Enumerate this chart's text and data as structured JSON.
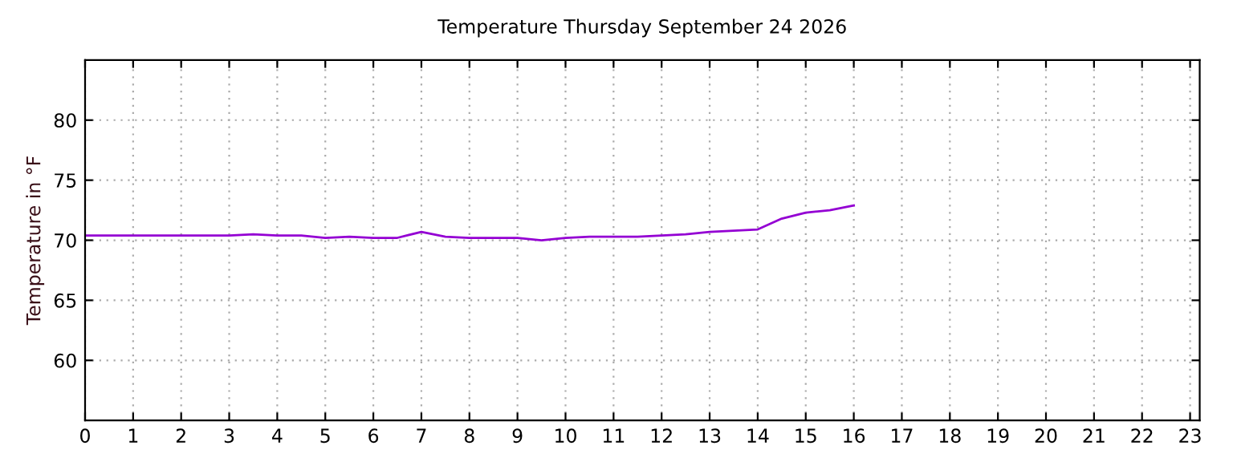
{
  "chart_data": {
    "type": "line",
    "title": "Temperature Thursday September 24 2026",
    "ylabel": "Temperature in °F",
    "x": [
      0,
      0.5,
      1,
      1.5,
      2,
      2.5,
      3,
      3.5,
      4,
      4.5,
      5,
      5.5,
      6,
      6.5,
      7,
      7.5,
      8,
      8.5,
      9,
      9.5,
      10,
      10.5,
      11,
      11.5,
      12,
      12.5,
      13,
      13.5,
      14,
      14.5,
      15,
      15.5,
      16
    ],
    "series": [
      {
        "color": "#9400d3",
        "values": [
          70.4,
          70.4,
          70.4,
          70.4,
          70.4,
          70.4,
          70.4,
          70.5,
          70.4,
          70.4,
          70.2,
          70.3,
          70.2,
          70.2,
          70.7,
          70.3,
          70.2,
          70.2,
          70.2,
          70.0,
          70.2,
          70.3,
          70.3,
          70.3,
          70.4,
          70.5,
          70.7,
          70.8,
          70.9,
          71.8,
          72.3,
          72.5,
          72.9
        ]
      }
    ],
    "xlim": [
      0,
      23.2
    ],
    "xticks": [
      0,
      1,
      2,
      3,
      4,
      5,
      6,
      7,
      8,
      9,
      10,
      11,
      12,
      13,
      14,
      15,
      16,
      17,
      18,
      19,
      20,
      21,
      22,
      23
    ],
    "ylim": [
      55,
      85
    ],
    "yticks": [
      60,
      65,
      70,
      75,
      80
    ],
    "grid": true,
    "line_style": "solid",
    "marker": "none",
    "legend": false
  }
}
